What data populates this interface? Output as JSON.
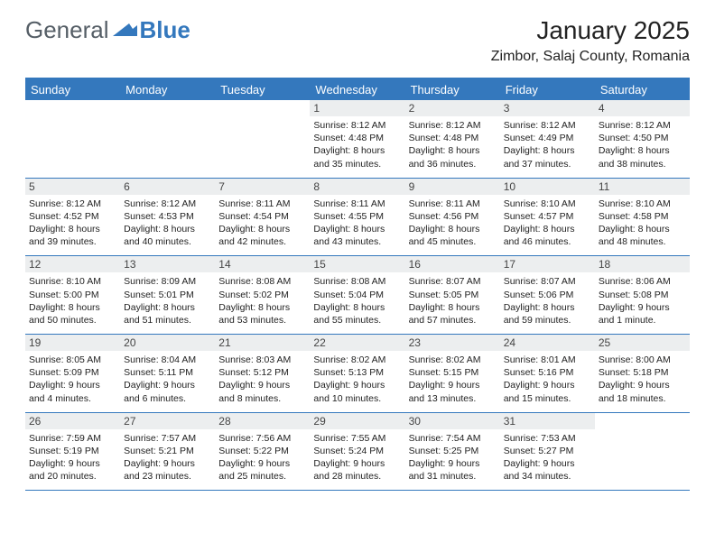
{
  "logo": {
    "text1": "General",
    "text2": "Blue",
    "color1": "#555e66",
    "color2": "#3478bd"
  },
  "title": "January 2025",
  "location": "Zimbor, Salaj County, Romania",
  "accent_color": "#3478bd",
  "daynum_bg": "#eceeef",
  "day_headers": [
    "Sunday",
    "Monday",
    "Tuesday",
    "Wednesday",
    "Thursday",
    "Friday",
    "Saturday"
  ],
  "weeks": [
    [
      {
        "blank": true
      },
      {
        "blank": true
      },
      {
        "blank": true
      },
      {
        "n": "1",
        "sr": "8:12 AM",
        "ss": "4:48 PM",
        "dl": "8 hours and 35 minutes."
      },
      {
        "n": "2",
        "sr": "8:12 AM",
        "ss": "4:48 PM",
        "dl": "8 hours and 36 minutes."
      },
      {
        "n": "3",
        "sr": "8:12 AM",
        "ss": "4:49 PM",
        "dl": "8 hours and 37 minutes."
      },
      {
        "n": "4",
        "sr": "8:12 AM",
        "ss": "4:50 PM",
        "dl": "8 hours and 38 minutes."
      }
    ],
    [
      {
        "n": "5",
        "sr": "8:12 AM",
        "ss": "4:52 PM",
        "dl": "8 hours and 39 minutes."
      },
      {
        "n": "6",
        "sr": "8:12 AM",
        "ss": "4:53 PM",
        "dl": "8 hours and 40 minutes."
      },
      {
        "n": "7",
        "sr": "8:11 AM",
        "ss": "4:54 PM",
        "dl": "8 hours and 42 minutes."
      },
      {
        "n": "8",
        "sr": "8:11 AM",
        "ss": "4:55 PM",
        "dl": "8 hours and 43 minutes."
      },
      {
        "n": "9",
        "sr": "8:11 AM",
        "ss": "4:56 PM",
        "dl": "8 hours and 45 minutes."
      },
      {
        "n": "10",
        "sr": "8:10 AM",
        "ss": "4:57 PM",
        "dl": "8 hours and 46 minutes."
      },
      {
        "n": "11",
        "sr": "8:10 AM",
        "ss": "4:58 PM",
        "dl": "8 hours and 48 minutes."
      }
    ],
    [
      {
        "n": "12",
        "sr": "8:10 AM",
        "ss": "5:00 PM",
        "dl": "8 hours and 50 minutes."
      },
      {
        "n": "13",
        "sr": "8:09 AM",
        "ss": "5:01 PM",
        "dl": "8 hours and 51 minutes."
      },
      {
        "n": "14",
        "sr": "8:08 AM",
        "ss": "5:02 PM",
        "dl": "8 hours and 53 minutes."
      },
      {
        "n": "15",
        "sr": "8:08 AM",
        "ss": "5:04 PM",
        "dl": "8 hours and 55 minutes."
      },
      {
        "n": "16",
        "sr": "8:07 AM",
        "ss": "5:05 PM",
        "dl": "8 hours and 57 minutes."
      },
      {
        "n": "17",
        "sr": "8:07 AM",
        "ss": "5:06 PM",
        "dl": "8 hours and 59 minutes."
      },
      {
        "n": "18",
        "sr": "8:06 AM",
        "ss": "5:08 PM",
        "dl": "9 hours and 1 minute."
      }
    ],
    [
      {
        "n": "19",
        "sr": "8:05 AM",
        "ss": "5:09 PM",
        "dl": "9 hours and 4 minutes."
      },
      {
        "n": "20",
        "sr": "8:04 AM",
        "ss": "5:11 PM",
        "dl": "9 hours and 6 minutes."
      },
      {
        "n": "21",
        "sr": "8:03 AM",
        "ss": "5:12 PM",
        "dl": "9 hours and 8 minutes."
      },
      {
        "n": "22",
        "sr": "8:02 AM",
        "ss": "5:13 PM",
        "dl": "9 hours and 10 minutes."
      },
      {
        "n": "23",
        "sr": "8:02 AM",
        "ss": "5:15 PM",
        "dl": "9 hours and 13 minutes."
      },
      {
        "n": "24",
        "sr": "8:01 AM",
        "ss": "5:16 PM",
        "dl": "9 hours and 15 minutes."
      },
      {
        "n": "25",
        "sr": "8:00 AM",
        "ss": "5:18 PM",
        "dl": "9 hours and 18 minutes."
      }
    ],
    [
      {
        "n": "26",
        "sr": "7:59 AM",
        "ss": "5:19 PM",
        "dl": "9 hours and 20 minutes."
      },
      {
        "n": "27",
        "sr": "7:57 AM",
        "ss": "5:21 PM",
        "dl": "9 hours and 23 minutes."
      },
      {
        "n": "28",
        "sr": "7:56 AM",
        "ss": "5:22 PM",
        "dl": "9 hours and 25 minutes."
      },
      {
        "n": "29",
        "sr": "7:55 AM",
        "ss": "5:24 PM",
        "dl": "9 hours and 28 minutes."
      },
      {
        "n": "30",
        "sr": "7:54 AM",
        "ss": "5:25 PM",
        "dl": "9 hours and 31 minutes."
      },
      {
        "n": "31",
        "sr": "7:53 AM",
        "ss": "5:27 PM",
        "dl": "9 hours and 34 minutes."
      },
      {
        "blank": true
      }
    ]
  ],
  "labels": {
    "sunrise": "Sunrise:",
    "sunset": "Sunset:",
    "daylight": "Daylight:"
  }
}
